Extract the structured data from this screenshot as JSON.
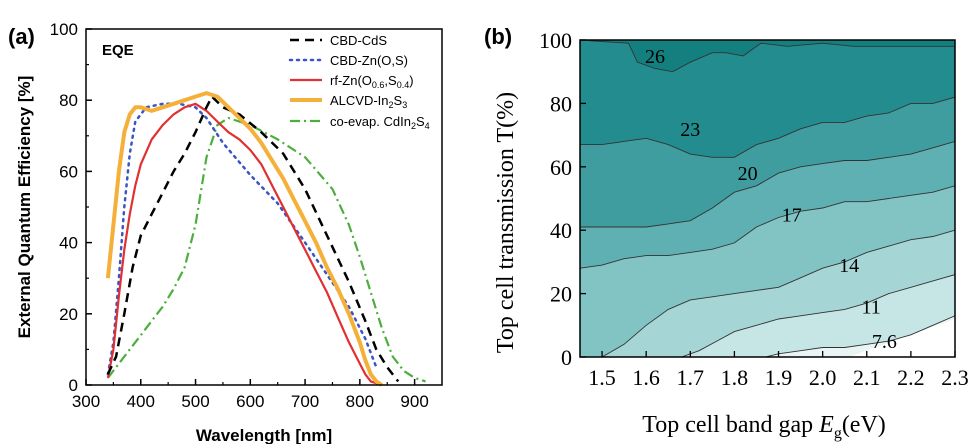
{
  "panels": {
    "a_label": "(a)",
    "b_label": "(b)"
  },
  "chart_data": [
    {
      "type": "line",
      "annotation": "EQE",
      "xlabel": "Wavelength [nm]",
      "ylabel": "External Quantum Efficiency [%]",
      "xlim": [
        300,
        950
      ],
      "ylim": [
        0,
        100
      ],
      "xticks": [
        300,
        400,
        500,
        600,
        700,
        800,
        900
      ],
      "yticks": [
        0,
        20,
        40,
        60,
        80,
        100
      ],
      "grid": false,
      "legend_position": "top-right",
      "series": [
        {
          "name": "CBD-CdS",
          "legend": [
            {
              "t": "CBD-CdS"
            }
          ],
          "color": "#000000",
          "style": "dashed",
          "x": [
            340,
            355,
            370,
            385,
            400,
            420,
            440,
            460,
            480,
            500,
            520,
            530,
            550,
            580,
            620,
            660,
            700,
            740,
            780,
            810,
            830,
            850,
            870
          ],
          "y": [
            3,
            8,
            20,
            33,
            42,
            48,
            54,
            60,
            65,
            71,
            78,
            81,
            78,
            76,
            71,
            65,
            55,
            42,
            29,
            18,
            10,
            5,
            1
          ]
        },
        {
          "name": "CBD-Zn(O,S)",
          "legend": [
            {
              "t": "CBD-Zn(O,S)"
            }
          ],
          "color": "#3a55c4",
          "style": "dotted",
          "x": [
            340,
            350,
            360,
            370,
            380,
            390,
            410,
            440,
            470,
            500,
            520,
            550,
            600,
            650,
            700,
            740,
            780,
            810,
            830
          ],
          "y": [
            3,
            12,
            30,
            50,
            65,
            74,
            78,
            79,
            79,
            78,
            75,
            68,
            59,
            51,
            40,
            31,
            22,
            13,
            5
          ]
        },
        {
          "name": "rf-Zn(O0.6,S0.4)",
          "legend": [
            {
              "t": "rf-Zn(O"
            },
            {
              "t": "0.6",
              "sub": true
            },
            {
              "t": ",S"
            },
            {
              "t": "0.4",
              "sub": true
            },
            {
              "t": ")"
            }
          ],
          "color": "#e03030",
          "style": "solid",
          "x": [
            340,
            350,
            360,
            370,
            380,
            390,
            400,
            420,
            440,
            460,
            480,
            500,
            520,
            540,
            560,
            580,
            600,
            620,
            640,
            660,
            680,
            700,
            720,
            740,
            760,
            780,
            800,
            810,
            820,
            840
          ],
          "y": [
            2,
            10,
            25,
            38,
            48,
            56,
            62,
            69,
            73,
            76,
            78,
            79,
            77,
            74,
            71,
            69,
            66,
            62,
            56,
            50,
            44,
            38,
            32,
            26,
            19,
            12,
            6,
            3,
            1,
            0
          ]
        },
        {
          "name": "ALCVD-In2S3",
          "legend": [
            {
              "t": "ALCVD-In"
            },
            {
              "t": "2",
              "sub": true
            },
            {
              "t": "S"
            },
            {
              "t": "3",
              "sub": true
            }
          ],
          "color": "#f5b03a",
          "style": "solid-thick",
          "x": [
            340,
            350,
            360,
            370,
            380,
            390,
            400,
            420,
            440,
            460,
            480,
            500,
            520,
            540,
            560,
            580,
            600,
            620,
            640,
            660,
            680,
            700,
            720,
            740,
            760,
            780,
            800,
            810,
            820,
            830,
            840
          ],
          "y": [
            30,
            45,
            60,
            71,
            76,
            78,
            78,
            77,
            78,
            79,
            80,
            81,
            82,
            81,
            78,
            75,
            72,
            68,
            63,
            58,
            52,
            46,
            40,
            33,
            27,
            20,
            12,
            7,
            3,
            1,
            0
          ]
        },
        {
          "name": "co-evap. CdIn2S4",
          "legend": [
            {
              "t": "co-evap. CdIn"
            },
            {
              "t": "2",
              "sub": true
            },
            {
              "t": "S"
            },
            {
              "t": "4",
              "sub": true
            }
          ],
          "color": "#4cae3c",
          "style": "dashdot",
          "x": [
            340,
            360,
            380,
            400,
            420,
            440,
            460,
            480,
            500,
            520,
            540,
            560,
            600,
            650,
            700,
            750,
            780,
            800,
            820,
            840,
            860,
            880,
            900,
            920
          ],
          "y": [
            2,
            6,
            10,
            14,
            18,
            22,
            27,
            33,
            45,
            64,
            73,
            75,
            73,
            69,
            64,
            55,
            45,
            36,
            26,
            16,
            8,
            4,
            2,
            1
          ]
        }
      ]
    },
    {
      "type": "contour",
      "xlabel_parts": {
        "main": "Top cell band gap ",
        "italic": "E",
        "sub": "g",
        "unit": "(eV)"
      },
      "ylabel": "Top cell transmission T(%)",
      "xlim": [
        1.45,
        2.3
      ],
      "ylim": [
        0,
        100
      ],
      "xticks": [
        "1.5",
        "1.6",
        "1.7",
        "1.8",
        "1.9",
        "2.0",
        "2.1",
        "2.2",
        "2.3"
      ],
      "yticks": [
        0,
        20,
        40,
        60,
        80,
        100
      ],
      "levels": [
        {
          "value": "26",
          "x": [
            1.45,
            1.5,
            1.56,
            1.58,
            1.62,
            1.66,
            1.7,
            1.75,
            1.78,
            1.82,
            1.86,
            1.92,
            2.0,
            2.07,
            2.15,
            2.22,
            2.3
          ],
          "y": [
            100,
            99.5,
            99,
            93,
            91,
            90,
            93,
            96,
            96,
            95,
            99,
            98,
            99,
            98,
            98,
            98,
            98
          ]
        },
        {
          "value": "23",
          "x": [
            1.45,
            1.5,
            1.55,
            1.6,
            1.65,
            1.7,
            1.75,
            1.8,
            1.85,
            1.9,
            1.95,
            2.0,
            2.05,
            2.1,
            2.15,
            2.2,
            2.25,
            2.3
          ],
          "y": [
            67,
            67,
            68,
            69,
            67,
            64,
            63,
            63,
            67,
            69,
            72,
            74,
            74,
            76,
            77,
            80,
            80,
            82
          ]
        },
        {
          "value": "20",
          "x": [
            1.45,
            1.5,
            1.55,
            1.6,
            1.65,
            1.7,
            1.75,
            1.8,
            1.85,
            1.9,
            1.95,
            2.0,
            2.05,
            2.1,
            2.15,
            2.2,
            2.25,
            2.3
          ],
          "y": [
            41,
            41,
            41,
            41,
            42,
            43,
            47,
            52,
            54,
            58,
            60,
            61,
            62,
            62,
            63,
            64,
            66,
            68
          ]
        },
        {
          "value": "17",
          "x": [
            1.45,
            1.5,
            1.55,
            1.6,
            1.65,
            1.7,
            1.75,
            1.8,
            1.85,
            1.9,
            1.95,
            2.0,
            2.05,
            2.1,
            2.15,
            2.2,
            2.25,
            2.3
          ],
          "y": [
            28,
            29,
            31,
            32,
            32,
            33,
            34,
            36,
            41,
            44,
            46,
            47,
            49,
            49,
            50,
            51,
            52,
            54
          ]
        },
        {
          "value": "14",
          "x": [
            1.5,
            1.55,
            1.6,
            1.65,
            1.7,
            1.75,
            1.8,
            1.85,
            1.9,
            1.95,
            2.0,
            2.05,
            2.1,
            2.15,
            2.2,
            2.25,
            2.3
          ],
          "y": [
            0,
            4,
            10,
            15,
            18,
            19,
            20,
            21,
            22,
            25,
            28,
            30,
            33,
            35,
            37,
            38,
            40
          ]
        },
        {
          "value": "11",
          "x": [
            1.68,
            1.72,
            1.76,
            1.8,
            1.85,
            1.9,
            1.95,
            2.0,
            2.05,
            2.1,
            2.15,
            2.2,
            2.25,
            2.3
          ],
          "y": [
            0,
            2,
            5,
            8,
            10,
            12,
            13,
            14,
            15,
            17,
            20,
            22,
            24,
            26
          ]
        },
        {
          "value": "7.6",
          "x": [
            1.87,
            1.9,
            1.95,
            2.0,
            2.05,
            2.1,
            2.15,
            2.2,
            2.25,
            2.3
          ],
          "y": [
            0,
            1,
            2,
            3,
            3,
            4,
            5,
            7,
            10,
            13
          ]
        }
      ],
      "label_positions": [
        {
          "text": "26",
          "x": 1.62,
          "y": 95
        },
        {
          "text": "23",
          "x": 1.7,
          "y": 72
        },
        {
          "text": "20",
          "x": 1.83,
          "y": 58
        },
        {
          "text": "17",
          "x": 1.93,
          "y": 45
        },
        {
          "text": "14",
          "x": 2.06,
          "y": 29
        },
        {
          "text": "11",
          "x": 2.11,
          "y": 16
        },
        {
          "text": "7.6",
          "x": 2.14,
          "y": 5
        }
      ],
      "band_colors": [
        "#e9f5f5",
        "#c6e5e5",
        "#a6d5d6",
        "#82c3c4",
        "#5fb0b2",
        "#3f9da0",
        "#238c8f",
        "#13807f"
      ]
    }
  ]
}
